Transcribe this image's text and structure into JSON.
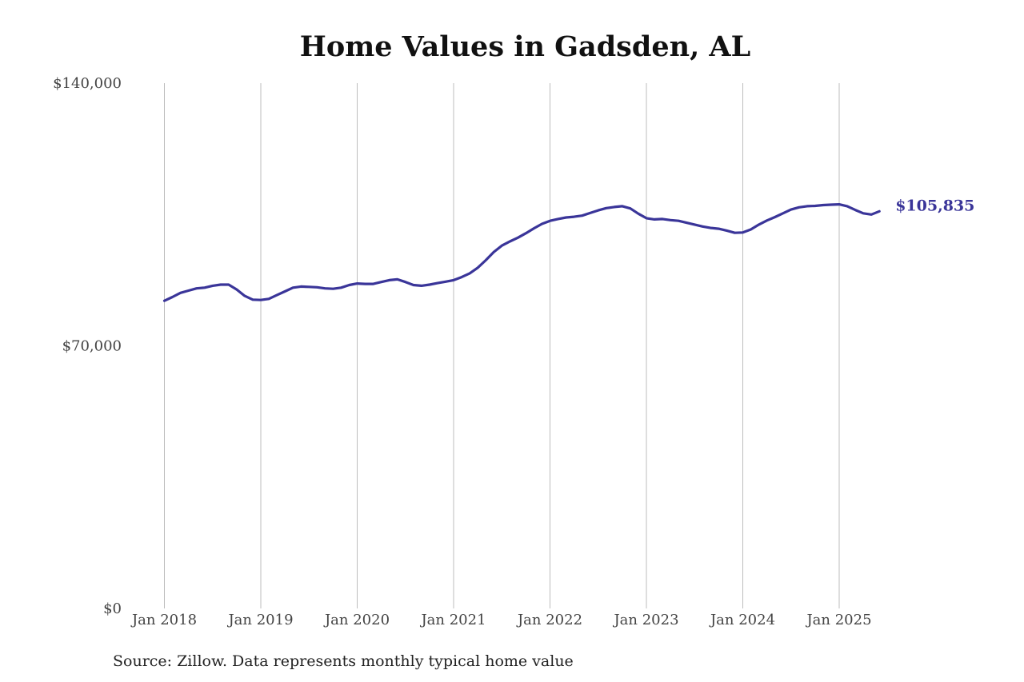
{
  "chart_data": {
    "type": "line",
    "title": "Home Values in Gadsden, AL",
    "source": "Source: Zillow. Data represents monthly typical home value",
    "xlabel": "",
    "ylabel": "",
    "ylim": [
      0,
      140000
    ],
    "y_ticks": [
      "$140,000",
      "$70,000",
      "$0"
    ],
    "y_tick_values": [
      140000,
      70000,
      0
    ],
    "x_ticks": [
      "Jan 2018",
      "Jan 2019",
      "Jan 2020",
      "Jan 2021",
      "Jan 2022",
      "Jan 2023",
      "Jan 2024",
      "Jan 2025"
    ],
    "grid": "vertical",
    "line_color": "#3a3599",
    "end_label": "$105,835",
    "series": [
      {
        "x": [
          "2018-01",
          "2018-02",
          "2018-03",
          "2018-04",
          "2018-05",
          "2018-06",
          "2018-07",
          "2018-08",
          "2018-09",
          "2018-10",
          "2018-11",
          "2018-12",
          "2019-01",
          "2019-02",
          "2019-03",
          "2019-04",
          "2019-05",
          "2019-06",
          "2019-07",
          "2019-08",
          "2019-09",
          "2019-10",
          "2019-11",
          "2019-12",
          "2020-01",
          "2020-02",
          "2020-03",
          "2020-04",
          "2020-05",
          "2020-06",
          "2020-07",
          "2020-08",
          "2020-09",
          "2020-10",
          "2020-11",
          "2020-12",
          "2021-01",
          "2021-02",
          "2021-03",
          "2021-04",
          "2021-05",
          "2021-06",
          "2021-07",
          "2021-08",
          "2021-09",
          "2021-10",
          "2021-11",
          "2021-12",
          "2022-01",
          "2022-02",
          "2022-03",
          "2022-04",
          "2022-05",
          "2022-06",
          "2022-07",
          "2022-08",
          "2022-09",
          "2022-10",
          "2022-11",
          "2022-12",
          "2023-01",
          "2023-02",
          "2023-03",
          "2023-04",
          "2023-05",
          "2023-06",
          "2023-07",
          "2023-08",
          "2023-09",
          "2023-10",
          "2023-11",
          "2023-12",
          "2024-01",
          "2024-02",
          "2024-03",
          "2024-04",
          "2024-05",
          "2024-06",
          "2024-07",
          "2024-08",
          "2024-09",
          "2024-10",
          "2024-11",
          "2024-12",
          "2025-01",
          "2025-02",
          "2025-03",
          "2025-04",
          "2025-05",
          "2025-06"
        ],
        "values": [
          82000,
          83000,
          84100,
          84700,
          85300,
          85500,
          86000,
          86300,
          86300,
          85000,
          83300,
          82300,
          82200,
          82500,
          83500,
          84500,
          85500,
          85800,
          85700,
          85600,
          85300,
          85200,
          85500,
          86200,
          86600,
          86500,
          86500,
          87000,
          87500,
          87700,
          87000,
          86200,
          86000,
          86300,
          86700,
          87100,
          87500,
          88300,
          89300,
          90800,
          92800,
          95000,
          96700,
          97800,
          98800,
          100000,
          101300,
          102500,
          103300,
          103800,
          104200,
          104400,
          104700,
          105400,
          106100,
          106700,
          107000,
          107200,
          106600,
          105200,
          104000,
          103700,
          103800,
          103500,
          103300,
          102800,
          102300,
          101800,
          101400,
          101200,
          100700,
          100100,
          100200,
          101000,
          102300,
          103400,
          104300,
          105300,
          106300,
          106900,
          107200,
          107300,
          107500,
          107600,
          107700,
          107200,
          106200,
          105300,
          105000,
          105835
        ]
      }
    ]
  }
}
